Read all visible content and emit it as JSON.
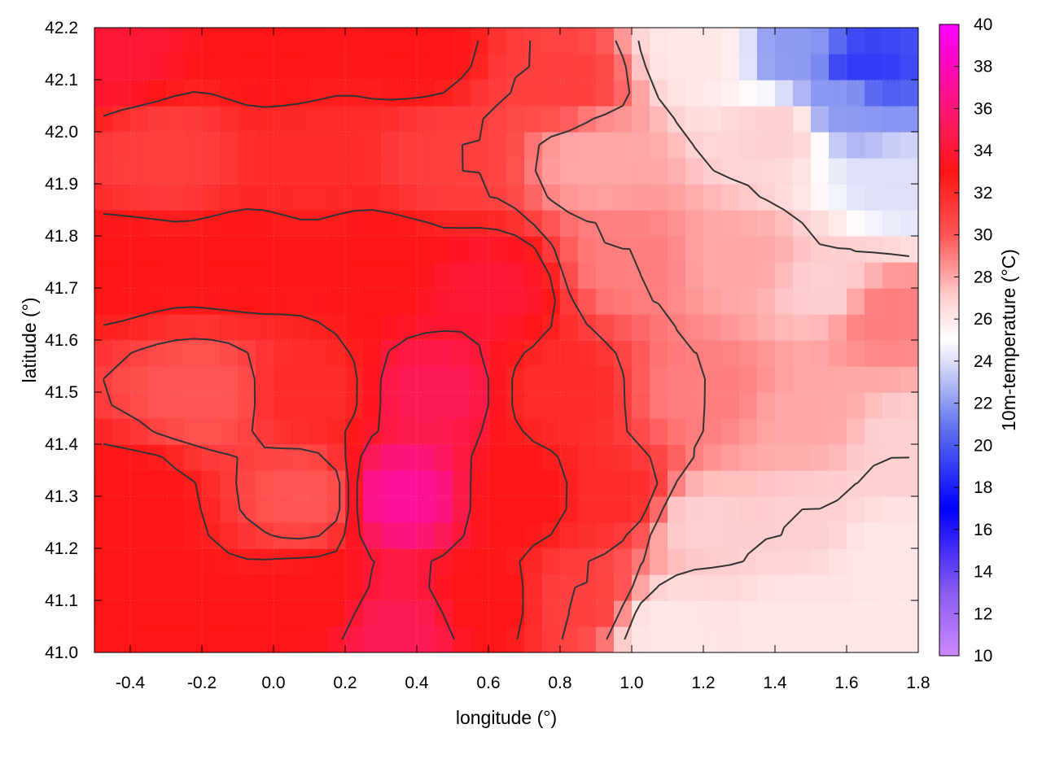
{
  "chart_data": {
    "type": "heatmap",
    "title": "",
    "xlabel": "longitude (°)",
    "ylabel": "latitude (°)",
    "colorbar_label": "10m-temperature (°C)",
    "xlim": [
      -0.5,
      1.8
    ],
    "ylim": [
      41.0,
      42.2
    ],
    "clim": [
      10,
      40
    ],
    "x_ticks": [
      "-0.4",
      "-0.2",
      "0.0",
      "0.2",
      "0.4",
      "0.6",
      "0.8",
      "1.0",
      "1.2",
      "1.4",
      "1.6",
      "1.8"
    ],
    "y_ticks": [
      "41.0",
      "41.1",
      "41.2",
      "41.3",
      "41.4",
      "41.5",
      "41.6",
      "41.7",
      "41.8",
      "41.9",
      "42.0",
      "42.1",
      "42.2"
    ],
    "colorbar_ticks": [
      "10",
      "12",
      "14",
      "16",
      "18",
      "20",
      "22",
      "24",
      "26",
      "28",
      "30",
      "32",
      "34",
      "36",
      "38",
      "40"
    ],
    "colormap": [
      {
        "value": 10,
        "color": "#cc88ff"
      },
      {
        "value": 13,
        "color": "#8a5cf0"
      },
      {
        "value": 17,
        "color": "#0000ff"
      },
      {
        "value": 21,
        "color": "#6677ee"
      },
      {
        "value": 24,
        "color": "#dde0f8"
      },
      {
        "value": 25,
        "color": "#ffffff"
      },
      {
        "value": 27,
        "color": "#ffd0d0"
      },
      {
        "value": 30,
        "color": "#ff5555"
      },
      {
        "value": 33,
        "color": "#ff1515"
      },
      {
        "value": 35,
        "color": "#ff1a55"
      },
      {
        "value": 40,
        "color": "#ff00ff"
      }
    ],
    "grid": true,
    "contours": true,
    "field": [
      {
        "lon": -0.45,
        "lat": 42.15,
        "temp": 34
      },
      {
        "lon": 0.0,
        "lat": 42.15,
        "temp": 33
      },
      {
        "lon": 0.4,
        "lat": 42.15,
        "temp": 33
      },
      {
        "lon": 0.8,
        "lat": 42.1,
        "temp": 31
      },
      {
        "lon": 1.2,
        "lat": 42.15,
        "temp": 26
      },
      {
        "lon": 1.45,
        "lat": 42.15,
        "temp": 22
      },
      {
        "lon": 1.65,
        "lat": 42.12,
        "temp": 19
      },
      {
        "lon": 1.6,
        "lat": 42.05,
        "temp": 22
      },
      {
        "lon": 1.75,
        "lat": 41.9,
        "temp": 24
      },
      {
        "lon": 1.4,
        "lat": 42.0,
        "temp": 27
      },
      {
        "lon": 0.9,
        "lat": 41.95,
        "temp": 28
      },
      {
        "lon": 0.5,
        "lat": 41.95,
        "temp": 31
      },
      {
        "lon": 0.1,
        "lat": 41.95,
        "temp": 32
      },
      {
        "lon": -0.3,
        "lat": 41.95,
        "temp": 31
      },
      {
        "lon": -0.4,
        "lat": 41.75,
        "temp": 33
      },
      {
        "lon": -0.1,
        "lat": 41.75,
        "temp": 33
      },
      {
        "lon": 0.3,
        "lat": 41.75,
        "temp": 33
      },
      {
        "lon": 0.6,
        "lat": 41.7,
        "temp": 34
      },
      {
        "lon": 1.0,
        "lat": 41.75,
        "temp": 29
      },
      {
        "lon": 1.3,
        "lat": 41.75,
        "temp": 28
      },
      {
        "lon": 1.55,
        "lat": 41.7,
        "temp": 27
      },
      {
        "lon": 1.7,
        "lat": 41.65,
        "temp": 29
      },
      {
        "lon": -0.2,
        "lat": 41.5,
        "temp": 30
      },
      {
        "lon": 0.1,
        "lat": 41.5,
        "temp": 32
      },
      {
        "lon": 0.45,
        "lat": 41.5,
        "temp": 35
      },
      {
        "lon": 0.8,
        "lat": 41.5,
        "temp": 32
      },
      {
        "lon": 1.2,
        "lat": 41.5,
        "temp": 29
      },
      {
        "lon": 1.5,
        "lat": 41.45,
        "temp": 28
      },
      {
        "lon": 1.75,
        "lat": 41.4,
        "temp": 27
      },
      {
        "lon": -0.4,
        "lat": 41.3,
        "temp": 33
      },
      {
        "lon": 0.1,
        "lat": 41.3,
        "temp": 30
      },
      {
        "lon": 0.35,
        "lat": 41.3,
        "temp": 37
      },
      {
        "lon": 0.7,
        "lat": 41.3,
        "temp": 33
      },
      {
        "lon": 0.95,
        "lat": 41.3,
        "temp": 32
      },
      {
        "lon": 1.2,
        "lat": 41.25,
        "temp": 27
      },
      {
        "lon": 1.5,
        "lat": 41.25,
        "temp": 27
      },
      {
        "lon": 1.7,
        "lat": 41.2,
        "temp": 26
      },
      {
        "lon": -0.3,
        "lat": 41.1,
        "temp": 33
      },
      {
        "lon": 0.1,
        "lat": 41.1,
        "temp": 33
      },
      {
        "lon": 0.35,
        "lat": 41.05,
        "temp": 35
      },
      {
        "lon": 0.6,
        "lat": 41.1,
        "temp": 33
      },
      {
        "lon": 0.85,
        "lat": 41.1,
        "temp": 31
      },
      {
        "lon": 1.1,
        "lat": 41.05,
        "temp": 26
      },
      {
        "lon": 1.45,
        "lat": 41.05,
        "temp": 26
      },
      {
        "lon": 1.7,
        "lat": 41.05,
        "temp": 26
      }
    ]
  }
}
